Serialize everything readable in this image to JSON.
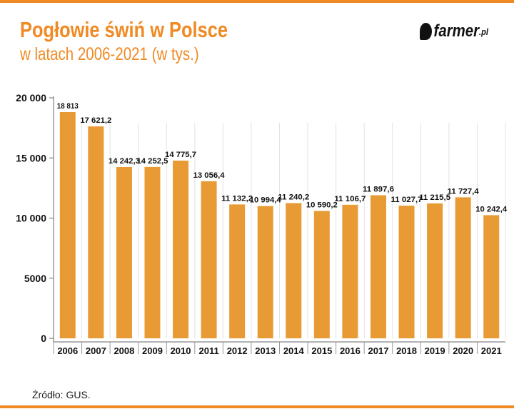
{
  "header": {
    "title": "Pogłowie świń w Polsce",
    "subtitle": "w latach 2006-2021 (w tys.)",
    "logo": "farmer.pl"
  },
  "source": "Źródło: GUS.",
  "colors": {
    "accent": "#f08a24",
    "bar": "#e89a35"
  },
  "chart_data": {
    "type": "bar",
    "title": "Pogłowie świń w Polsce",
    "subtitle": "w latach 2006-2021 (w tys.)",
    "categories": [
      "2006",
      "2007",
      "2008",
      "2009",
      "2010",
      "2011",
      "2012",
      "2013",
      "2014",
      "2015",
      "2016",
      "2017",
      "2018",
      "2019",
      "2020",
      "2021"
    ],
    "values": [
      18813,
      17621.2,
      14242.3,
      14252.5,
      14775.7,
      13056.4,
      11132.2,
      10994.4,
      11240.2,
      10590.2,
      11106.7,
      11897.6,
      11027.7,
      11215.5,
      11727.4,
      10242.4
    ],
    "data_labels": [
      "18 813",
      "17 621,2",
      "14 242,3",
      "14 252,5",
      "14 775,7",
      "13 056,4",
      "11 132,2",
      "10 994,4",
      "11 240,2",
      "10 590,2",
      "11 106,7",
      "11 897,6",
      "11 027,7",
      "11 215,5",
      "11 727,4",
      "10 242,4"
    ],
    "yticks": [
      0,
      5000,
      10000,
      15000,
      20000
    ],
    "ytick_labels": [
      "0",
      "5000",
      "10 000",
      "15 000",
      "20 000"
    ],
    "ylim": [
      0,
      20000
    ],
    "xlabel": "",
    "ylabel": "",
    "grid": "vertical"
  }
}
